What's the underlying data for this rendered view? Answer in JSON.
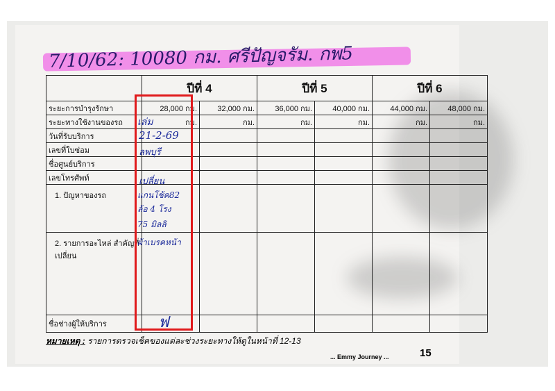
{
  "handwritten_title": "7/10/62: 10080 กม. ศรีปัญจรัม. กพ5",
  "years": [
    "ปีที่ 4",
    "ปีที่ 5",
    "ปีที่ 6"
  ],
  "row_labels": [
    "ระยะการบำรุงรักษา",
    "ระยะทางใช้งานของรถ",
    "วันที่รับบริการ",
    "เลขที่ใบซ่อม",
    "ชื่อศูนย์บริการ",
    "เลขโทรศัพท์",
    "1. ปัญหาของรถ",
    "2. รายการอะไหล่ สำคัญที่เปลี่ยน",
    "ชื่อช่างผู้ให้บริการ"
  ],
  "intervals": [
    "28,000 กม.",
    "32,000 กม.",
    "36,000 กม.",
    "40,000 กม.",
    "44,000 กม.",
    "48,000 กม."
  ],
  "unit": "กม.",
  "handwritten": {
    "mileage": "เล่ม",
    "date": "21-2-69",
    "repair_no": "ลพบุรี",
    "phone": "เปลี่ยน",
    "problem": [
      "แกนโช้ค82",
      "ล้อ 4 โรง",
      "75 มิลลิ",
      "ผ้าเบรคหน้า"
    ],
    "signature": "ฟ"
  },
  "note_label": "หมายเหตุ :",
  "note_text": "รายการตรวจเช็คของแต่ละช่วงระยะทางให้ดูในหน้าที่ 12-13",
  "brand": "... Emmy Journey ...",
  "page_number": "15",
  "highlight_color": "#f07de8",
  "box_color": "#e0191b"
}
